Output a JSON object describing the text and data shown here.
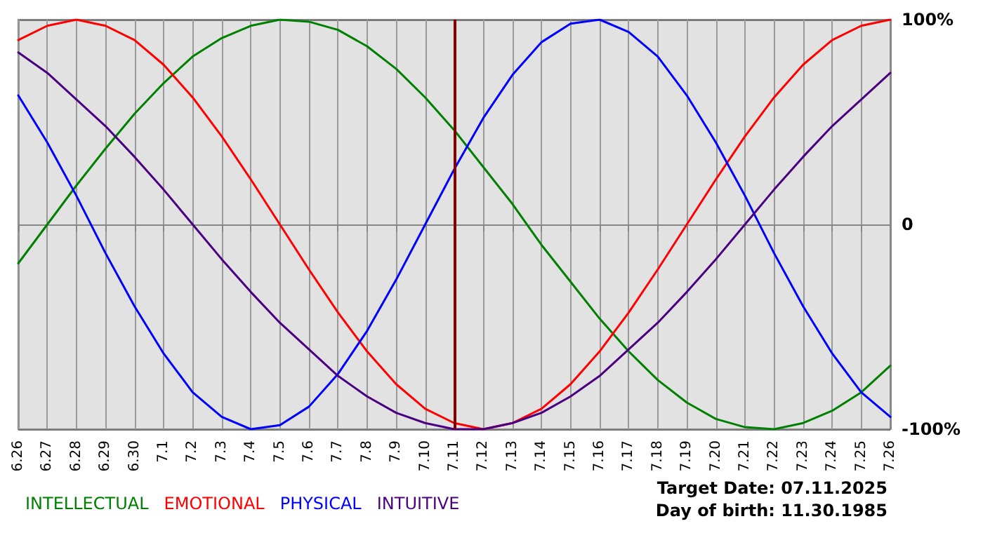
{
  "chart_data": {
    "type": "line",
    "categories": [
      "6.26",
      "6.27",
      "6.28",
      "6.29",
      "6.30",
      "7.1",
      "7.2",
      "7.3",
      "7.4",
      "7.5",
      "7.6",
      "7.7",
      "7.8",
      "7.9",
      "7.10",
      "7.11",
      "7.12",
      "7.13",
      "7.14",
      "7.15",
      "7.16",
      "7.17",
      "7.18",
      "7.19",
      "7.20",
      "7.21",
      "7.22",
      "7.23",
      "7.24",
      "7.25",
      "7.26"
    ],
    "series": [
      {
        "name": "INTELLECTUAL",
        "color": "#008000",
        "values": [
          -19,
          0,
          19,
          37,
          54,
          69,
          82,
          91,
          97,
          100,
          99,
          95,
          87,
          76,
          62,
          46,
          28,
          10,
          -10,
          -28,
          -46,
          -62,
          -76,
          -87,
          -95,
          -99,
          -100,
          -97,
          -91,
          -82,
          -69
        ]
      },
      {
        "name": "EMOTIONAL",
        "color": "#ff0000",
        "values": [
          90,
          97,
          100,
          97,
          90,
          78,
          62,
          43,
          22,
          0,
          -22,
          -43,
          -62,
          -78,
          -90,
          -97,
          -100,
          -97,
          -90,
          -78,
          -62,
          -43,
          -22,
          0,
          22,
          43,
          62,
          78,
          90,
          97,
          100
        ]
      },
      {
        "name": "PHYSICAL",
        "color": "#0000ff",
        "values": [
          63,
          40,
          14,
          -14,
          -40,
          -63,
          -82,
          -94,
          -100,
          -98,
          -89,
          -73,
          -52,
          -27,
          0,
          27,
          52,
          73,
          89,
          98,
          100,
          94,
          82,
          63,
          40,
          14,
          -14,
          -40,
          -63,
          -82,
          -94
        ]
      },
      {
        "name": "INTUITIVE",
        "color": "#4b0082",
        "values": [
          84,
          74,
          61,
          48,
          33,
          17,
          0,
          -17,
          -33,
          -48,
          -61,
          -74,
          -84,
          -92,
          -97,
          -100,
          -100,
          -97,
          -92,
          -84,
          -74,
          -61,
          -48,
          -33,
          -17,
          0,
          17,
          33,
          48,
          61,
          74
        ]
      }
    ],
    "ylim": [
      -100,
      100
    ],
    "yticks": [
      {
        "value": 100,
        "label": "100%"
      },
      {
        "value": 0,
        "label": "0"
      },
      {
        "value": -100,
        "label": "-100%"
      }
    ],
    "ref_lines": [
      {
        "axis": "x",
        "value": "7.11",
        "color": "#800000"
      }
    ],
    "annotations": [
      "Target Date: 07.11.2025",
      "Day of birth: 11.30.1985"
    ],
    "grid": true,
    "legend": "bottom left",
    "marker": "none",
    "line_style": "solid"
  }
}
